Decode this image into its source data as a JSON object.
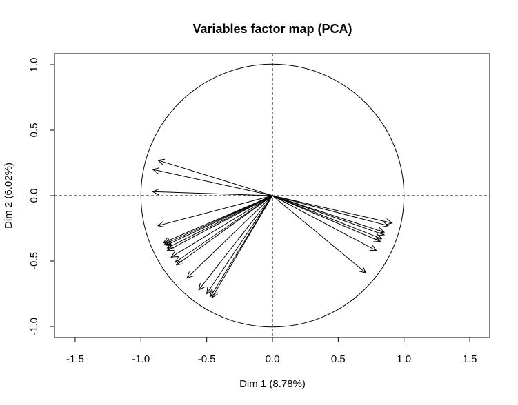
{
  "chart_data": {
    "type": "scatter",
    "title": "Variables factor map (PCA)",
    "xlabel": "Dim 1 (8.78%)",
    "ylabel": "Dim 2 (6.02%)",
    "xlim": [
      -1.5,
      1.5
    ],
    "ylim": [
      -1.0,
      1.0
    ],
    "x_ticks": [
      {
        "value": -1.5,
        "label": "-1.5"
      },
      {
        "value": -1.0,
        "label": "-1.0"
      },
      {
        "value": -0.5,
        "label": "-0.5"
      },
      {
        "value": 0.0,
        "label": "0.0"
      },
      {
        "value": 0.5,
        "label": "0.5"
      },
      {
        "value": 1.0,
        "label": "1.0"
      },
      {
        "value": 1.5,
        "label": "1.5"
      }
    ],
    "y_ticks": [
      {
        "value": -1.0,
        "label": "-1.0"
      },
      {
        "value": -0.5,
        "label": "-0.5"
      },
      {
        "value": 0.0,
        "label": "0.0"
      },
      {
        "value": 0.5,
        "label": "0.5"
      },
      {
        "value": 1.0,
        "label": "1.0"
      }
    ],
    "unit_circle": true,
    "reference_lines": {
      "x": 0,
      "y": 0,
      "style": "dashed"
    },
    "vectors": [
      {
        "x": -0.87,
        "y": 0.27
      },
      {
        "x": -0.91,
        "y": 0.2
      },
      {
        "x": -0.91,
        "y": 0.03
      },
      {
        "x": -0.87,
        "y": -0.23
      },
      {
        "x": -0.83,
        "y": -0.36
      },
      {
        "x": -0.82,
        "y": -0.37
      },
      {
        "x": -0.81,
        "y": -0.38
      },
      {
        "x": -0.8,
        "y": -0.4
      },
      {
        "x": -0.8,
        "y": -0.42
      },
      {
        "x": -0.77,
        "y": -0.47
      },
      {
        "x": -0.74,
        "y": -0.51
      },
      {
        "x": -0.73,
        "y": -0.53
      },
      {
        "x": -0.65,
        "y": -0.63
      },
      {
        "x": -0.56,
        "y": -0.72
      },
      {
        "x": -0.5,
        "y": -0.75
      },
      {
        "x": -0.47,
        "y": -0.77
      },
      {
        "x": -0.46,
        "y": -0.78
      },
      {
        "x": 0.91,
        "y": -0.21
      },
      {
        "x": 0.88,
        "y": -0.23
      },
      {
        "x": 0.85,
        "y": -0.28
      },
      {
        "x": 0.85,
        "y": -0.3
      },
      {
        "x": 0.83,
        "y": -0.33
      },
      {
        "x": 0.82,
        "y": -0.35
      },
      {
        "x": 0.79,
        "y": -0.42
      },
      {
        "x": 0.71,
        "y": -0.59
      }
    ],
    "grid": false
  }
}
